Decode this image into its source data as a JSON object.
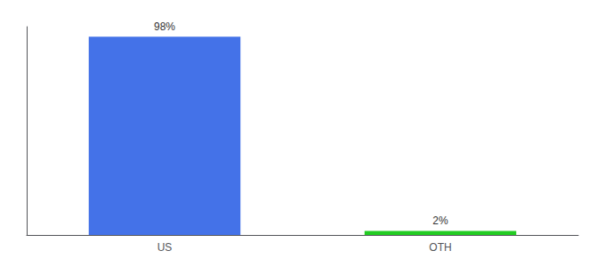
{
  "chart_data": {
    "type": "bar",
    "categories": [
      "US",
      "OTH"
    ],
    "values": [
      98,
      2
    ],
    "value_labels": [
      "98%",
      "2%"
    ],
    "colors": [
      "#4472e8",
      "#22cc22"
    ],
    "ylim": [
      0,
      103
    ],
    "yticks": [],
    "tick_labels": "x",
    "data_labels": true,
    "grid": false
  }
}
